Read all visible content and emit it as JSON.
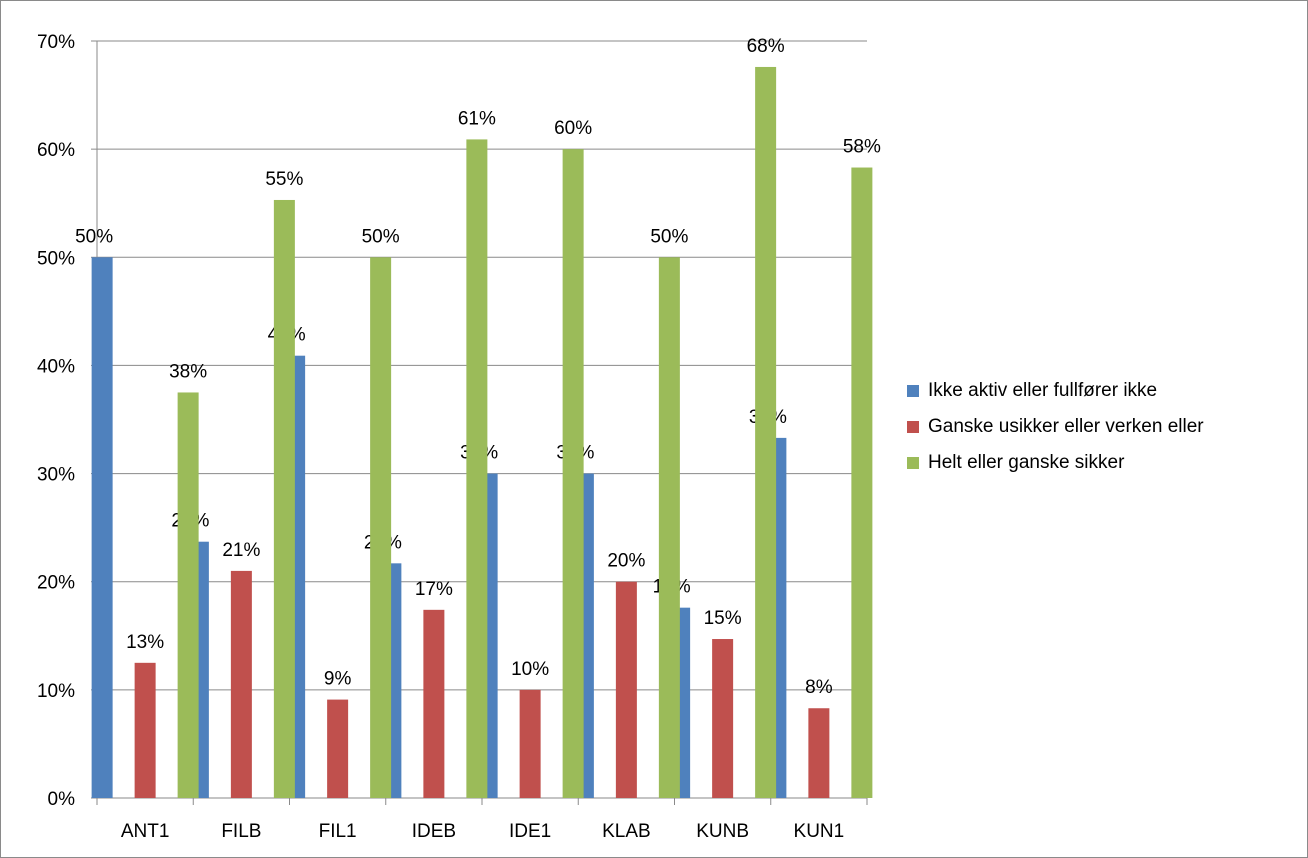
{
  "chart_data": {
    "type": "bar",
    "categories": [
      "ANT1",
      "FILB",
      "FIL1",
      "IDEB",
      "IDE1",
      "KLAB",
      "KUNB",
      "KUN1"
    ],
    "series": [
      {
        "name": "Ikke aktiv eller fullfører ikke",
        "color": "#4F81BD",
        "values": [
          0.5,
          0.237,
          0.409,
          0.217,
          0.3,
          0.3,
          0.176,
          0.333
        ],
        "labels": [
          "50%",
          "24%",
          "41%",
          "22%",
          "30%",
          "30%",
          "18%",
          "33%"
        ]
      },
      {
        "name": "Ganske usikker eller verken eller",
        "color": "#C0504D",
        "values": [
          0.125,
          0.21,
          0.091,
          0.174,
          0.1,
          0.2,
          0.147,
          0.083
        ],
        "labels": [
          "13%",
          "21%",
          "9%",
          "17%",
          "10%",
          "20%",
          "15%",
          "8%"
        ]
      },
      {
        "name": "Helt eller ganske sikker",
        "color": "#9BBB59",
        "values": [
          0.375,
          0.553,
          0.5,
          0.609,
          0.6,
          0.5,
          0.676,
          0.583
        ],
        "labels": [
          "38%",
          "55%",
          "50%",
          "61%",
          "60%",
          "50%",
          "68%",
          "58%"
        ]
      }
    ],
    "y_ticks": [
      "0%",
      "10%",
      "20%",
      "30%",
      "40%",
      "50%",
      "60%",
      "70%"
    ],
    "ylim": [
      0,
      0.7
    ],
    "grid": true,
    "legend_position": "right",
    "title": "",
    "xlabel": "",
    "ylabel": ""
  }
}
